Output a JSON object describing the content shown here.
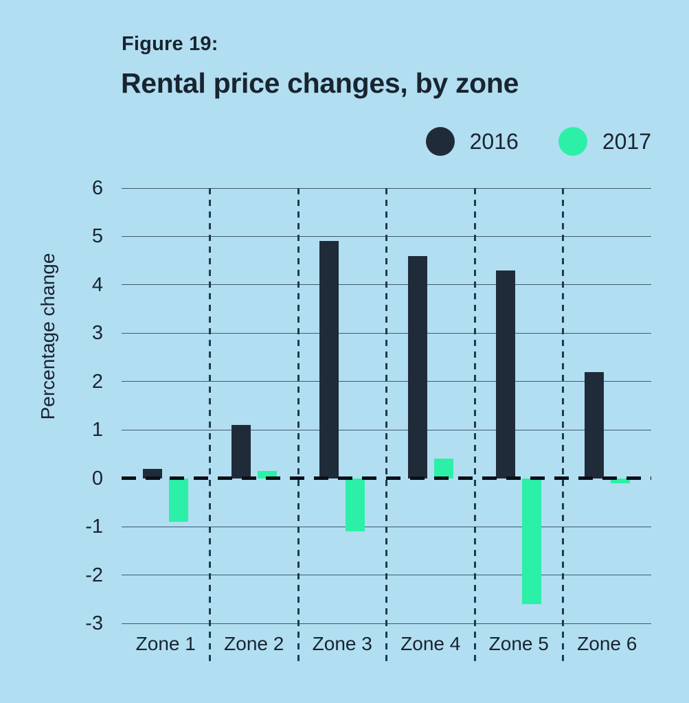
{
  "chart_data": {
    "type": "bar",
    "figure_label": "Figure 19:",
    "title": "Rental price changes, by zone",
    "ylabel": "Percentage change",
    "xlabel": "",
    "categories": [
      "Zone 1",
      "Zone 2",
      "Zone 3",
      "Zone 4",
      "Zone 5",
      "Zone 6"
    ],
    "series": [
      {
        "name": "2016",
        "color": "#202b3a",
        "values": [
          0.2,
          1.1,
          4.9,
          4.6,
          4.3,
          2.2
        ]
      },
      {
        "name": "2017",
        "color": "#2cf0a8",
        "values": [
          -0.9,
          0.15,
          -1.1,
          0.4,
          -2.6,
          -0.1
        ]
      }
    ],
    "ylim": [
      -3,
      6
    ],
    "yticks": [
      6,
      5,
      4,
      3,
      2,
      1,
      0,
      -1,
      -2,
      -3
    ],
    "grid": true,
    "zero_line": "dashed",
    "zone_dividers": "dashed",
    "legend_position": "top-right"
  },
  "colors": {
    "background": "#b2def1",
    "text": "#18242f",
    "gridline": "#3c5a6d",
    "divider": "#1e3a4d",
    "zero_line": "#0b1016"
  }
}
